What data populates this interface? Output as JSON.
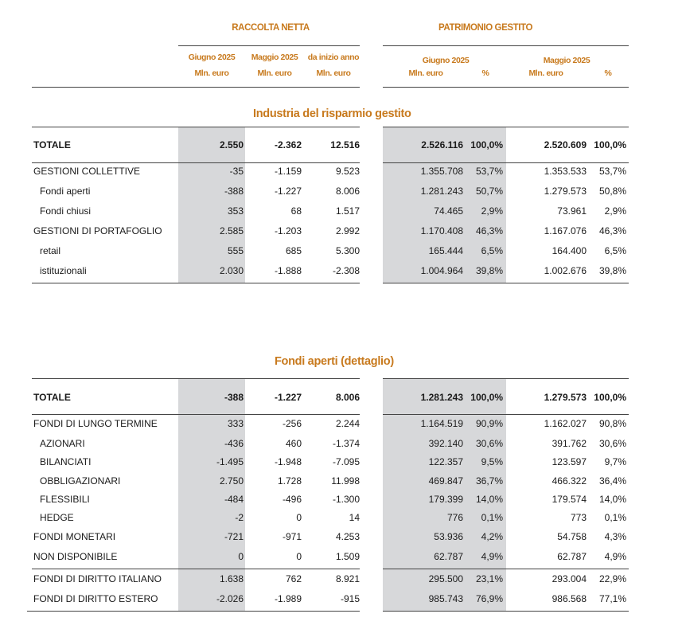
{
  "headers": {
    "raccolta": "RACCOLTA NETTA",
    "patrimonio": "PATRIMONIO GESTITO",
    "raccolta_cols": [
      {
        "top": "Giugno 2025",
        "bottom": "Mln. euro"
      },
      {
        "top": "Maggio 2025",
        "bottom": "Mln. euro"
      },
      {
        "top": "da inizio anno",
        "bottom": "Mln. euro"
      }
    ],
    "patrimonio_cols": [
      {
        "top": "Giugno 2025",
        "bottom": "Mln. euro",
        "pct": "%"
      },
      {
        "top": "Maggio 2025",
        "bottom": "Mln. euro",
        "pct": "%"
      }
    ]
  },
  "section1": {
    "title": "Industria del risparmio gestito",
    "total": {
      "label": "TOTALE",
      "v": [
        "2.550",
        "-2.362",
        "12.516",
        "2.526.116",
        "100,0%",
        "2.520.609",
        "100,0%"
      ]
    },
    "rows": [
      {
        "label": "GESTIONI COLLETTIVE",
        "v": [
          "-35",
          "-1.159",
          "9.523",
          "1.355.708",
          "53,7%",
          "1.353.533",
          "53,7%"
        ]
      },
      {
        "label": "Fondi aperti",
        "v": [
          "-388",
          "-1.227",
          "8.006",
          "1.281.243",
          "50,7%",
          "1.279.573",
          "50,8%"
        ]
      },
      {
        "label": "Fondi chiusi",
        "v": [
          "353",
          "68",
          "1.517",
          "74.465",
          "2,9%",
          "73.961",
          "2,9%"
        ]
      },
      {
        "label": "GESTIONI DI PORTAFOGLIO",
        "v": [
          "2.585",
          "-1.203",
          "2.992",
          "1.170.408",
          "46,3%",
          "1.167.076",
          "46,3%"
        ]
      },
      {
        "label": "retail",
        "v": [
          "555",
          "685",
          "5.300",
          "165.444",
          "6,5%",
          "164.400",
          "6,5%"
        ]
      },
      {
        "label": "istituzionali",
        "v": [
          "2.030",
          "-1.888",
          "-2.308",
          "1.004.964",
          "39,8%",
          "1.002.676",
          "39,8%"
        ]
      }
    ]
  },
  "section2": {
    "title": "Fondi aperti (dettaglio)",
    "total": {
      "label": "TOTALE",
      "v": [
        "-388",
        "-1.227",
        "8.006",
        "1.281.243",
        "100,0%",
        "1.279.573",
        "100,0%"
      ]
    },
    "rows": [
      {
        "label": "FONDI DI LUNGO TERMINE",
        "v": [
          "333",
          "-256",
          "2.244",
          "1.164.519",
          "90,9%",
          "1.162.027",
          "90,8%"
        ]
      },
      {
        "label": "AZIONARI",
        "v": [
          "-436",
          "460",
          "-1.374",
          "392.140",
          "30,6%",
          "391.762",
          "30,6%"
        ]
      },
      {
        "label": "BILANCIATI",
        "v": [
          "-1.495",
          "-1.948",
          "-7.095",
          "122.357",
          "9,5%",
          "123.597",
          "9,7%"
        ]
      },
      {
        "label": "OBBLIGAZIONARI",
        "v": [
          "2.750",
          "1.728",
          "11.998",
          "469.847",
          "36,7%",
          "466.322",
          "36,4%"
        ]
      },
      {
        "label": "FLESSIBILI",
        "v": [
          "-484",
          "-496",
          "-1.300",
          "179.399",
          "14,0%",
          "179.574",
          "14,0%"
        ]
      },
      {
        "label": "HEDGE",
        "v": [
          "-2",
          "0",
          "14",
          "776",
          "0,1%",
          "773",
          "0,1%"
        ]
      },
      {
        "label": "FONDI MONETARI",
        "v": [
          "-721",
          "-971",
          "4.253",
          "53.936",
          "4,2%",
          "54.758",
          "4,3%"
        ]
      },
      {
        "label": "NON DISPONIBILE",
        "v": [
          "0",
          "0",
          "1.509",
          "62.787",
          "4,9%",
          "62.787",
          "4,9%"
        ]
      },
      {
        "label": "FONDI DI DIRITTO ITALIANO",
        "v": [
          "1.638",
          "762",
          "8.921",
          "295.500",
          "23,1%",
          "293.004",
          "22,9%"
        ]
      },
      {
        "label": "FONDI DI DIRITTO ESTERO",
        "v": [
          "-2.026",
          "-1.989",
          "-915",
          "985.743",
          "76,9%",
          "986.568",
          "77,1%"
        ]
      }
    ]
  }
}
